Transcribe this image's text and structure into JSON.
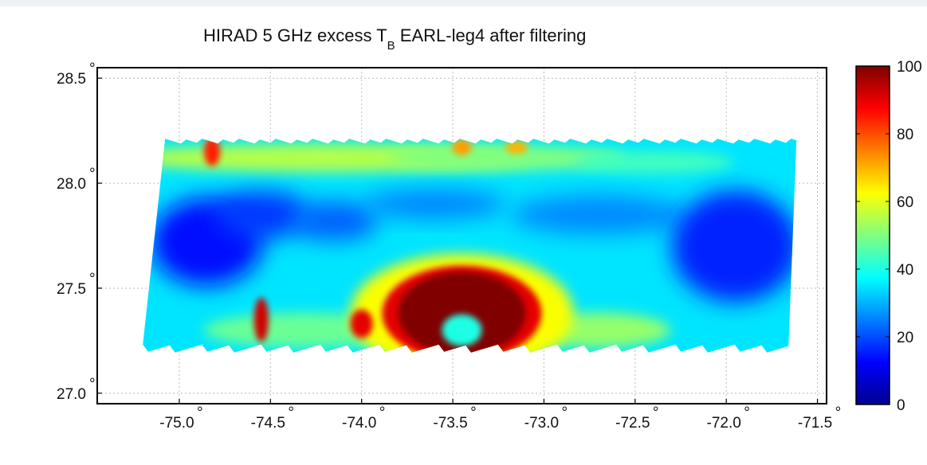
{
  "chart_data": {
    "type": "heatmap",
    "title_main": "HIRAD 5 GHz excess T",
    "title_sub": "B",
    "title_rest": " EARL-leg4 after filtering",
    "x_ticks": [
      "-75.0",
      "-74.5",
      "-74.0",
      "-73.5",
      "-73.0",
      "-72.5",
      "-72.0",
      "-71.5"
    ],
    "x_tick_values": [
      -75.0,
      -74.5,
      -74.0,
      -73.5,
      -73.0,
      -72.5,
      -72.0,
      -71.5
    ],
    "y_ticks": [
      "27.0",
      "27.5",
      "28.0",
      "28.5"
    ],
    "y_tick_values": [
      27.0,
      27.5,
      28.0,
      28.5
    ],
    "degree_symbol": "°",
    "xlim": [
      -75.45,
      -71.45
    ],
    "ylim": [
      26.95,
      28.55
    ],
    "swath": {
      "lon_min": -75.2,
      "lon_max": -71.65,
      "lat_min": 27.22,
      "lat_max": 28.2
    },
    "features": [
      {
        "name": "background",
        "lon": -73.5,
        "lat": 27.7,
        "value": 35
      },
      {
        "name": "warm-arc",
        "lon": -73.45,
        "lat": 27.35,
        "value": 100
      },
      {
        "name": "hot-spot-west",
        "lon": -74.55,
        "lat": 27.33,
        "value": 90
      },
      {
        "name": "hot-spot-north",
        "lon": -74.82,
        "lat": 28.2,
        "value": 85
      },
      {
        "name": "cold-band",
        "lon": -74.9,
        "lat": 27.7,
        "value": 15
      }
    ],
    "colorbar": {
      "ticks": [
        "0",
        "20",
        "40",
        "60",
        "80",
        "100"
      ],
      "tick_values": [
        0,
        20,
        40,
        60,
        80,
        100
      ],
      "range": [
        0,
        100
      ],
      "colormap": "jet"
    },
    "grid": true
  }
}
